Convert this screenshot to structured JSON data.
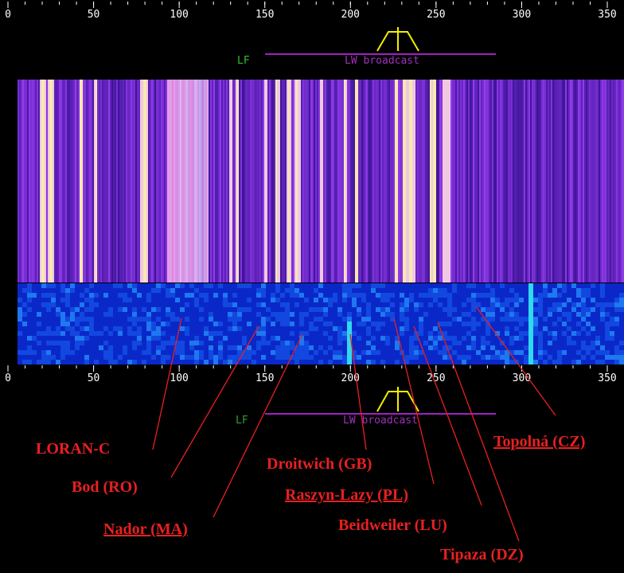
{
  "top_scale": {
    "ticks": [
      0,
      50,
      100,
      150,
      200,
      250,
      300,
      350
    ]
  },
  "top_band": {
    "lf": "LF",
    "broadcast": "LW broadcast"
  },
  "bottom_scale": {
    "ticks": [
      0,
      50,
      100,
      150,
      200,
      250,
      300,
      350
    ]
  },
  "bottom_band": {
    "lf": "LF",
    "broadcast": "LW broadcast"
  },
  "annotations": [
    {
      "label": "LORAN-C"
    },
    {
      "label": "Bod (RO)"
    },
    {
      "label": "Nador (MA)"
    },
    {
      "label": "Droitwich (GB)"
    },
    {
      "label": "Raszyn-Lazy (PL)"
    },
    {
      "label": "Beidweiler (LU)"
    },
    {
      "label": "Tipaza (DZ)"
    },
    {
      "label": "Topolná (CZ)"
    }
  ]
}
